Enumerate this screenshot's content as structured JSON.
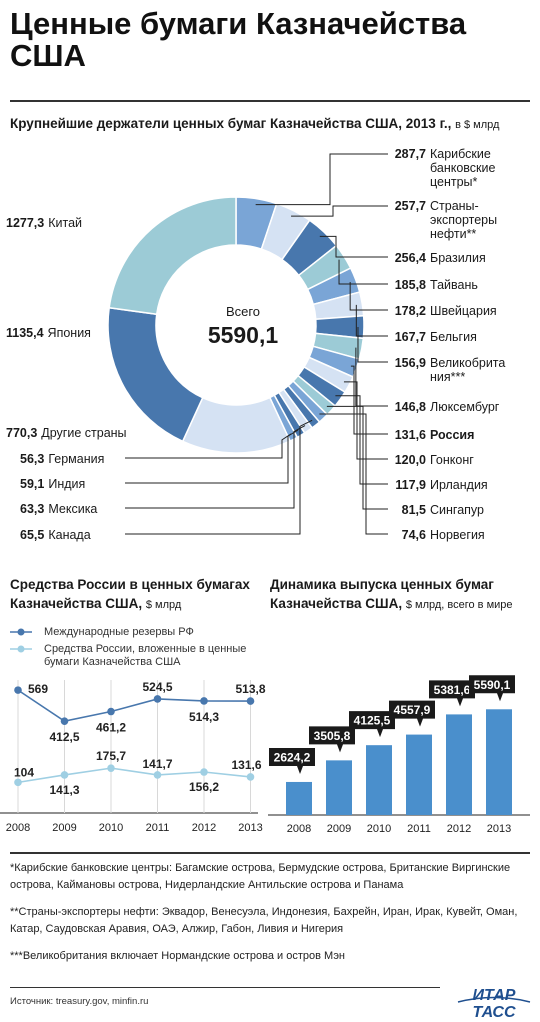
{
  "title": "Ценные бумаги Казначейства США",
  "donut": {
    "heading": "Крупнейшие держатели ценных бумаг Казначейства США, 2013 г.,",
    "unit": "в $ млрд",
    "center_caption": "Всего",
    "center_total": "5590,1"
  },
  "russia_chart": {
    "title_line1": "Средства России в ценных бумагах",
    "title_line2": "Казначейства США,",
    "unit": "$ млрд",
    "legend": [
      "Международные резервы РФ",
      "Средства России, вложенные в ценные бумаги Казначейства США"
    ]
  },
  "issuance_chart": {
    "title_line1": "Динамика выпуска ценных бумаг",
    "title_line2": "Казначейства США,",
    "unit": "$ млрд, всего в мире"
  },
  "footnotes": [
    "*Карибские банковские центры: Багамские острова, Бермудские острова, Британские Виргинские острова, Каймановы острова, Нидерландские Антильские острова и Панама",
    "**Страны-экспортеры нефти: Эквадор, Венесуэла, Индонезия, Бахрейн, Иран, Ирак, Кувейт, Оман, Катар, Саудовская Аравия, ОАЭ, Алжир, Габон, Ливия и Нигерия",
    "***Великобритания включает Нормандские острова и остров Мэн"
  ],
  "source": "Источник: treasury.gov, minfin.ru",
  "logo": {
    "line1": "ИТАР",
    "line2": "ТАСС"
  },
  "chart_data": [
    {
      "type": "pie",
      "title": "Крупнейшие держатели ценных бумаг Казначейства США, 2013 г., в $ млрд",
      "total": 5590.1,
      "slices": [
        {
          "name": "Карибские банковские центры*",
          "value": 287.7,
          "value_label": "287,7",
          "color": "#7aa5d6"
        },
        {
          "name": "Страны-экспортеры нефти**",
          "value": 257.7,
          "value_label": "257,7",
          "color": "#d5e2f3"
        },
        {
          "name": "Бразилия",
          "value": 256.4,
          "value_label": "256,4",
          "color": "#4877ad"
        },
        {
          "name": "Тайвань",
          "value": 185.8,
          "value_label": "185,8",
          "color": "#9ccbd6"
        },
        {
          "name": "Швейцария",
          "value": 178.2,
          "value_label": "178,2",
          "color": "#7aa5d6"
        },
        {
          "name": "Бельгия",
          "value": 167.7,
          "value_label": "167,7",
          "color": "#d5e2f3"
        },
        {
          "name": "Великобритания***",
          "value": 156.9,
          "value_label": "156,9",
          "color": "#4877ad"
        },
        {
          "name": "Люксембург",
          "value": 146.8,
          "value_label": "146,8",
          "color": "#9ccbd6"
        },
        {
          "name": "Россия",
          "value": 131.6,
          "value_label": "131,6",
          "color": "#7aa5d6"
        },
        {
          "name": "Гонконг",
          "value": 120.0,
          "value_label": "120,0",
          "color": "#d5e2f3"
        },
        {
          "name": "Ирландия",
          "value": 117.9,
          "value_label": "117,9",
          "color": "#4877ad"
        },
        {
          "name": "Сингапур",
          "value": 81.5,
          "value_label": "81,5",
          "color": "#9ccbd6"
        },
        {
          "name": "Норвегия",
          "value": 74.6,
          "value_label": "74,6",
          "color": "#7aa5d6"
        },
        {
          "name": "Канада",
          "value": 65.5,
          "value_label": "65,5",
          "color": "#4877ad"
        },
        {
          "name": "Мексика",
          "value": 63.3,
          "value_label": "63,3",
          "color": "#d5e2f3"
        },
        {
          "name": "Индия",
          "value": 59.1,
          "value_label": "59,1",
          "color": "#4877ad"
        },
        {
          "name": "Германия",
          "value": 56.3,
          "value_label": "56,3",
          "color": "#7aa5d6"
        },
        {
          "name": "Другие страны",
          "value": 770.3,
          "value_label": "770,3",
          "color": "#d5e2f3"
        },
        {
          "name": "Япония",
          "value": 1135.4,
          "value_label": "1135,4",
          "color": "#4877ad"
        },
        {
          "name": "Китай",
          "value": 1277.3,
          "value_label": "1277,3",
          "color": "#9ccbd6"
        }
      ]
    },
    {
      "type": "line",
      "title": "Средства России в ценных бумагах Казначейства США, $ млрд",
      "categories": [
        "2008",
        "2009",
        "2010",
        "2011",
        "2012",
        "2013"
      ],
      "ylim": [
        0,
        620
      ],
      "series": [
        {
          "name": "Международные резервы РФ",
          "values": [
            569,
            412.5,
            461.2,
            524.5,
            514.3,
            513.8
          ],
          "labels": [
            "569",
            "412,5",
            "461,2",
            "524,5",
            "514,3",
            "513,8"
          ],
          "color": "#4877ad"
        },
        {
          "name": "Средства России, вложенные в ценные бумаги Казначейства США",
          "values": [
            104,
            141.3,
            175.7,
            141.7,
            156.2,
            131.6
          ],
          "labels": [
            "104",
            "141,3",
            "175,7",
            "141,7",
            "156,2",
            "131,6"
          ],
          "color": "#9fcfe3"
        }
      ]
    },
    {
      "type": "bar",
      "title": "Динамика выпуска ценных бумаг Казначейства США, $ млрд, всего в мире",
      "categories": [
        "2008",
        "2009",
        "2010",
        "2011",
        "2012",
        "2013"
      ],
      "values": [
        2624.2,
        3505.8,
        4125.5,
        4557.9,
        5381.6,
        5590.1
      ],
      "labels": [
        "2624,2",
        "3505,8",
        "4125,5",
        "4557,9",
        "5381,6",
        "5590,1"
      ],
      "color": "#4a8fcc"
    }
  ]
}
